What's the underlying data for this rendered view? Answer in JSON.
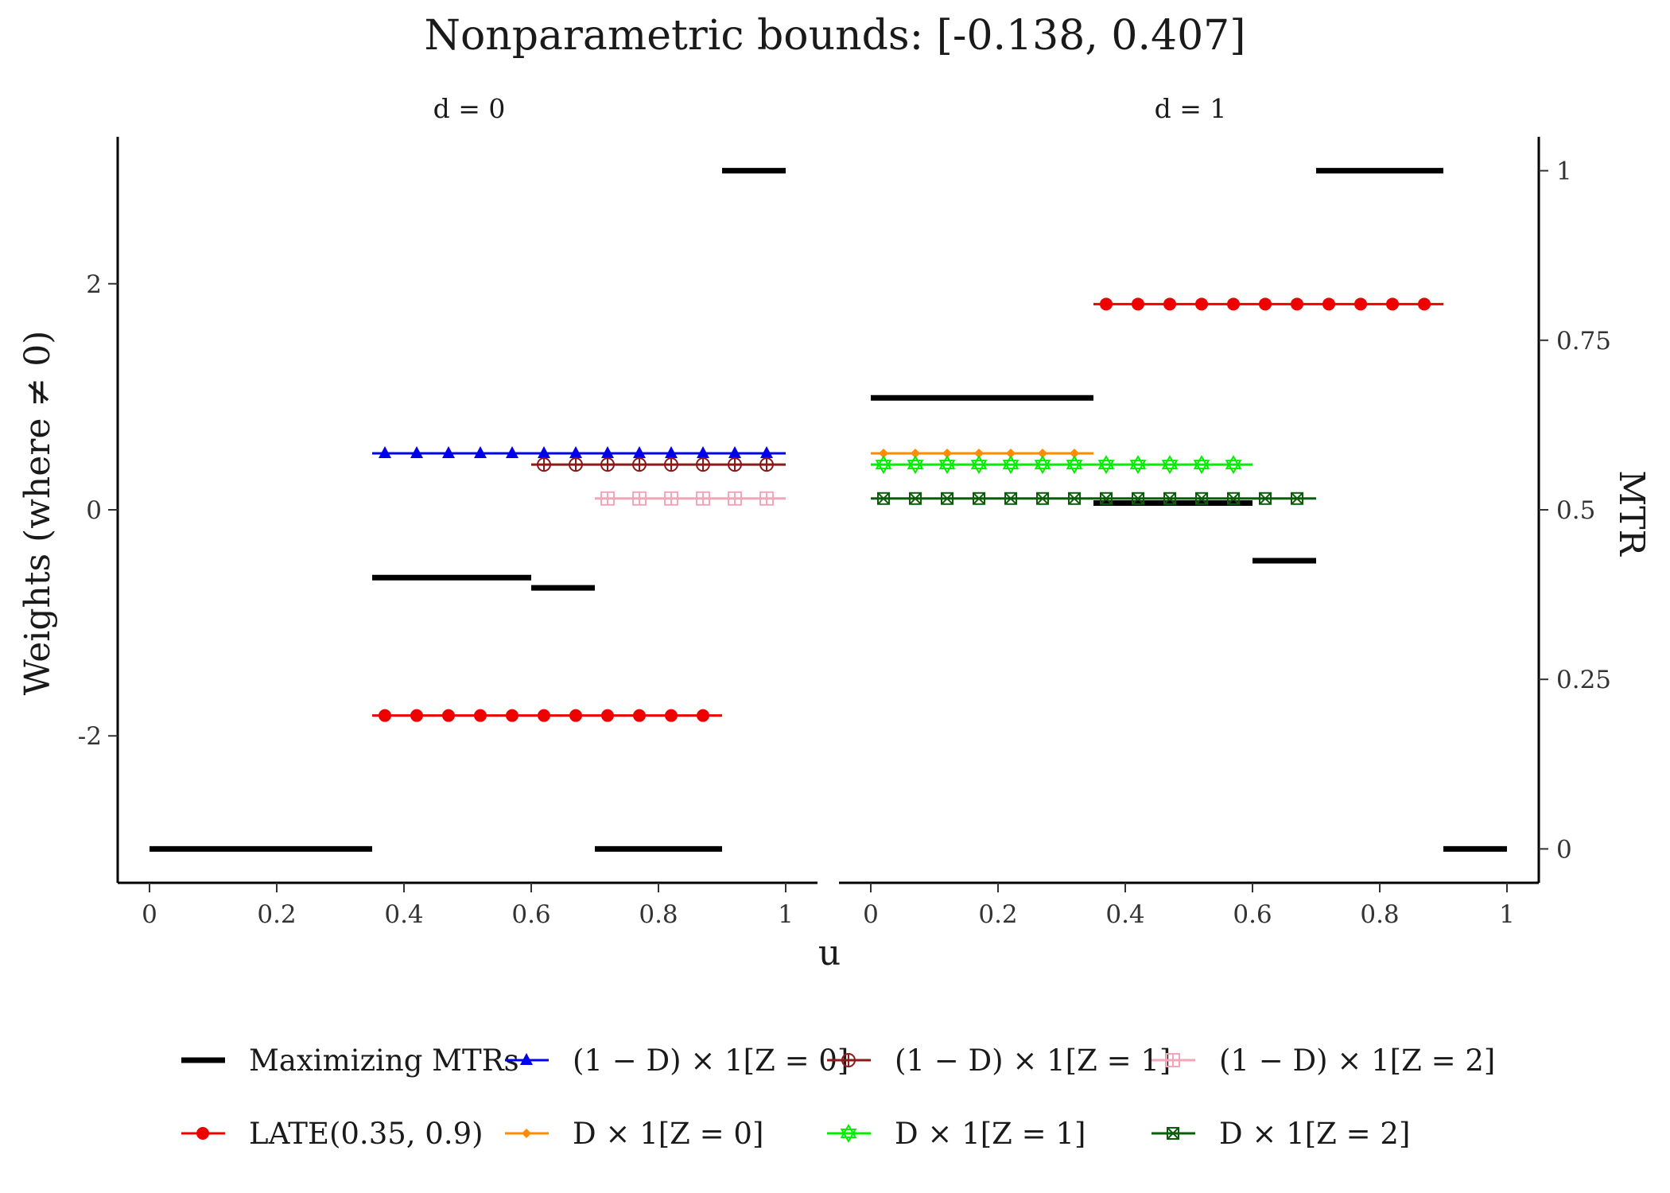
{
  "chart_data": {
    "type": "line",
    "title": "Nonparametric bounds: [-0.138, 0.407]",
    "xlabel": "u",
    "ylabel": "Weights (where ≠ 0)",
    "y2label": "MTR",
    "xlim": [
      0,
      1
    ],
    "ylim": [
      -3.3,
      3.3
    ],
    "y2lim": [
      0,
      1
    ],
    "xticks": [
      "0",
      "0.2",
      "0.4",
      "0.6",
      "0.8",
      "1"
    ],
    "yticks": [
      "-2",
      "0",
      "2"
    ],
    "y2ticks": [
      "0",
      "0.25",
      "0.5",
      "0.75",
      "1"
    ],
    "facets": [
      "d = 0",
      "d = 1"
    ],
    "legend_position": "bottom",
    "series": [
      {
        "name": "Maximizing MTRs",
        "color": "#000000",
        "marker": "none",
        "axis": "right",
        "segments": [
          {
            "facet": 0,
            "x": [
              0,
              0.35
            ],
            "y": 0
          },
          {
            "facet": 0,
            "x": [
              0.35,
              0.6
            ],
            "y": 0.4
          },
          {
            "facet": 0,
            "x": [
              0.6,
              0.7
            ],
            "y": 0.385
          },
          {
            "facet": 0,
            "x": [
              0.7,
              0.9
            ],
            "y": 0
          },
          {
            "facet": 0,
            "x": [
              0.9,
              1
            ],
            "y": 1
          },
          {
            "facet": 1,
            "x": [
              0,
              0.35
            ],
            "y": 0.665
          },
          {
            "facet": 1,
            "x": [
              0.35,
              0.6
            ],
            "y": 0.51
          },
          {
            "facet": 1,
            "x": [
              0.6,
              0.7
            ],
            "y": 0.425
          },
          {
            "facet": 1,
            "x": [
              0.7,
              0.9
            ],
            "y": 1
          },
          {
            "facet": 1,
            "x": [
              0.9,
              1
            ],
            "y": 0
          }
        ]
      },
      {
        "name": "(1 − D) × 1[Z = 0]",
        "color": "#0000ee",
        "marker": "triangle",
        "segments": [
          {
            "facet": 0,
            "x": [
              0.35,
              1
            ],
            "y": 0.5
          }
        ]
      },
      {
        "name": "(1 − D) × 1[Z = 1]",
        "color": "#8b1a1a",
        "marker": "circle-plus",
        "segments": [
          {
            "facet": 0,
            "x": [
              0.6,
              1
            ],
            "y": 0.4
          }
        ]
      },
      {
        "name": "(1 − D) × 1[Z = 2]",
        "color": "#f4a6b8",
        "marker": "square-plus",
        "segments": [
          {
            "facet": 0,
            "x": [
              0.7,
              1
            ],
            "y": 0.1
          }
        ]
      },
      {
        "name": "LATE(0.35, 0.9)",
        "color": "#ee0000",
        "marker": "dot",
        "segments": [
          {
            "facet": 0,
            "x": [
              0.35,
              0.9
            ],
            "y": -1.82
          },
          {
            "facet": 1,
            "x": [
              0.35,
              0.9
            ],
            "y": 1.82
          }
        ]
      },
      {
        "name": "D × 1[Z = 0]",
        "color": "#ff8c00",
        "marker": "diamond",
        "segments": [
          {
            "facet": 1,
            "x": [
              0,
              0.35
            ],
            "y": 0.5
          }
        ]
      },
      {
        "name": "D × 1[Z = 1]",
        "color": "#00ee00",
        "marker": "star",
        "segments": [
          {
            "facet": 1,
            "x": [
              0,
              0.6
            ],
            "y": 0.4
          }
        ]
      },
      {
        "name": "D × 1[Z = 2]",
        "color": "#0b5d0b",
        "marker": "square-x",
        "segments": [
          {
            "facet": 1,
            "x": [
              0,
              0.7
            ],
            "y": 0.1
          }
        ]
      }
    ],
    "legend_order": [
      0,
      1,
      2,
      3,
      4,
      5,
      6,
      7
    ]
  }
}
